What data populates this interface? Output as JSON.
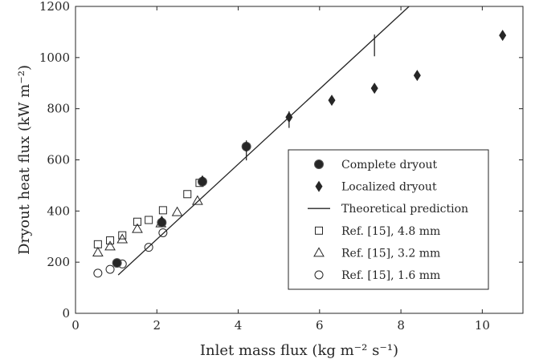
{
  "chart_data": {
    "type": "scatter",
    "xlabel": "Inlet mass flux (kg m⁻² s⁻¹)",
    "ylabel": "Dryout heat flux (kW m⁻²)",
    "xlim": [
      0,
      11
    ],
    "ylim": [
      0,
      1200
    ],
    "x_ticks": [
      0,
      2,
      4,
      6,
      8,
      10
    ],
    "y_ticks": [
      0,
      200,
      400,
      600,
      800,
      1000,
      1200
    ],
    "legend_position": "right-center",
    "grid": false,
    "series": [
      {
        "name": "Complete dryout",
        "marker": "filled-circle",
        "points": [
          [
            1.02,
            197
          ],
          [
            2.12,
            355
          ],
          [
            3.12,
            515
          ],
          [
            4.2,
            652
          ]
        ]
      },
      {
        "name": "Localized dryout",
        "marker": "filled-diamond",
        "points": [
          [
            2.12,
            360
          ],
          [
            3.12,
            518
          ],
          [
            4.2,
            651
          ],
          [
            5.25,
            767
          ],
          [
            6.3,
            833
          ],
          [
            7.35,
            880
          ],
          [
            8.4,
            930
          ],
          [
            10.5,
            1087
          ]
        ]
      },
      {
        "name": "Theoretical prediction",
        "marker": "line",
        "line": [
          [
            1.05,
            150
          ],
          [
            8.2,
            1200
          ]
        ],
        "error_bars": [
          {
            "x": 4.2,
            "low": 598,
            "high": 676
          },
          {
            "x": 5.25,
            "low": 725,
            "high": 790
          },
          {
            "x": 7.35,
            "low": 1005,
            "high": 1090
          }
        ]
      },
      {
        "name": "Ref. [15], 4.8 mm",
        "marker": "open-square",
        "points": [
          [
            0.55,
            270
          ],
          [
            0.85,
            285
          ],
          [
            1.15,
            305
          ],
          [
            1.52,
            358
          ],
          [
            1.8,
            365
          ],
          [
            2.15,
            403
          ],
          [
            2.75,
            466
          ],
          [
            3.05,
            510
          ]
        ]
      },
      {
        "name": "Ref. [15], 3.2 mm",
        "marker": "open-triangle",
        "points": [
          [
            0.55,
            238
          ],
          [
            0.85,
            262
          ],
          [
            1.15,
            290
          ],
          [
            1.52,
            330
          ],
          [
            2.1,
            352
          ],
          [
            2.5,
            396
          ],
          [
            3.0,
            440
          ]
        ]
      },
      {
        "name": "Ref. [15], 1.6 mm",
        "marker": "open-circle",
        "points": [
          [
            0.55,
            157
          ],
          [
            0.85,
            172
          ],
          [
            1.15,
            193
          ],
          [
            1.8,
            258
          ],
          [
            2.15,
            315
          ]
        ]
      }
    ]
  }
}
